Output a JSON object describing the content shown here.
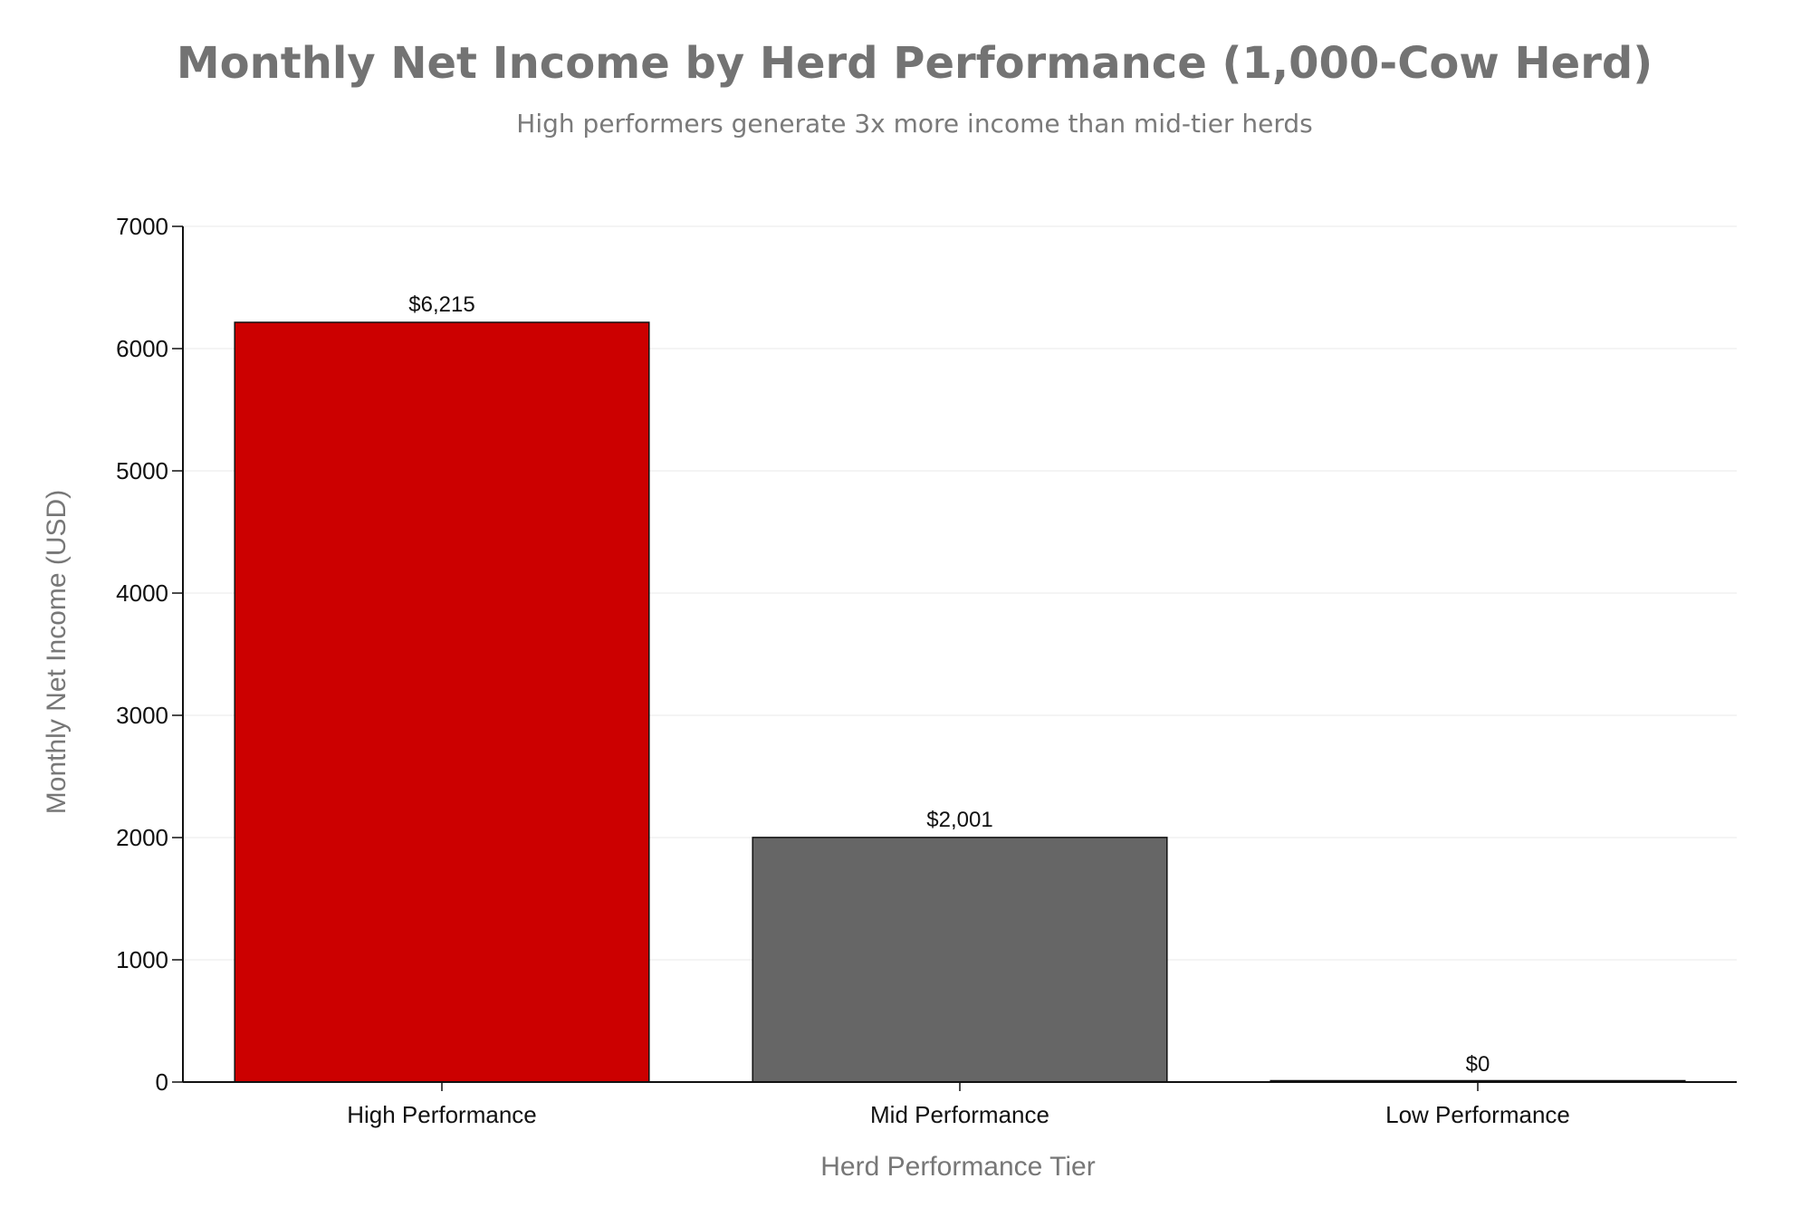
{
  "chart_data": {
    "type": "bar",
    "title": "Monthly Net Income by Herd Performance (1,000-Cow Herd)",
    "subtitle": "High performers generate 3x more income than mid-tier herds",
    "xlabel": "Herd Performance Tier",
    "ylabel": "Monthly Net Income (USD)",
    "categories": [
      "High Performance",
      "Mid Performance",
      "Low Performance"
    ],
    "values": [
      6215,
      2001,
      0
    ],
    "data_labels": [
      "$6,215",
      "$2,001",
      "$0"
    ],
    "colors": [
      "#cc0000",
      "#666666",
      "#666666"
    ],
    "ylim": [
      0,
      7000
    ],
    "yticks": [
      "0",
      "1000",
      "2000",
      "3000",
      "4000",
      "5000",
      "6000",
      "7000"
    ],
    "grid": true,
    "legend": "none"
  }
}
